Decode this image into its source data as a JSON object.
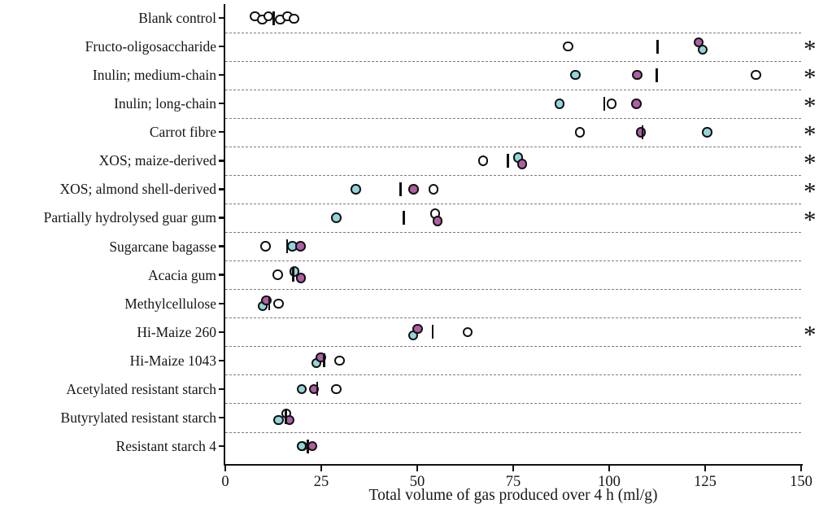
{
  "chart_data": {
    "type": "scatter",
    "title": "",
    "xlabel": "Total volume of gas produced over 4 h (ml/g)",
    "ylabel": "",
    "xlim": [
      0,
      150
    ],
    "x_ticks": [
      0,
      25,
      50,
      75,
      100,
      125,
      150
    ],
    "grid": "dashed horizontal row separators",
    "legend_position": "none",
    "significance_marker": "*",
    "colors": {
      "open": "#ffffff",
      "teal": "#93d5da",
      "pink": "#ae5fa5",
      "outline": "#111111"
    },
    "rows": [
      {
        "label": "Blank control",
        "significant": false,
        "median": 12.6,
        "points": [
          {
            "s": "open",
            "v": 7.7,
            "dy": -2
          },
          {
            "s": "open",
            "v": 9.6,
            "dy": 2
          },
          {
            "s": "open",
            "v": 11.2,
            "dy": -2
          },
          {
            "s": "open",
            "v": 14.3,
            "dy": 2
          },
          {
            "s": "open",
            "v": 16.2,
            "dy": -2
          },
          {
            "s": "open",
            "v": 17.9,
            "dy": 1
          }
        ]
      },
      {
        "label": "Fructo-oligosaccharide",
        "significant": true,
        "median": 112.6,
        "points": [
          {
            "s": "open",
            "v": 89.3,
            "dy": 0
          },
          {
            "s": "pink",
            "v": 123.3,
            "dy": -5
          },
          {
            "s": "teal",
            "v": 124.4,
            "dy": 4
          }
        ]
      },
      {
        "label": "Inulin; medium-chain",
        "significant": true,
        "median": 112.4,
        "points": [
          {
            "s": "teal",
            "v": 91.2,
            "dy": 0
          },
          {
            "s": "pink",
            "v": 107.3,
            "dy": 0
          },
          {
            "s": "open",
            "v": 138.2,
            "dy": 0
          }
        ]
      },
      {
        "label": "Inulin; long-chain",
        "significant": true,
        "median": 98.7,
        "points": [
          {
            "s": "teal",
            "v": 87.1,
            "dy": 0
          },
          {
            "s": "open",
            "v": 100.6,
            "dy": 0
          },
          {
            "s": "pink",
            "v": 107.1,
            "dy": 0
          }
        ]
      },
      {
        "label": "Carrot fibre",
        "significant": true,
        "median": 108.7,
        "points": [
          {
            "s": "open",
            "v": 92.4,
            "dy": 0
          },
          {
            "s": "pink",
            "v": 108.3,
            "dy": 0
          },
          {
            "s": "teal",
            "v": 125.5,
            "dy": 0
          }
        ]
      },
      {
        "label": "XOS; maize-derived",
        "significant": true,
        "median": 73.6,
        "points": [
          {
            "s": "open",
            "v": 67.2,
            "dy": 0
          },
          {
            "s": "teal",
            "v": 76.3,
            "dy": -4
          },
          {
            "s": "pink",
            "v": 77.3,
            "dy": 4
          }
        ]
      },
      {
        "label": "XOS; almond shell-derived",
        "significant": true,
        "median": 45.6,
        "points": [
          {
            "s": "teal",
            "v": 34.0,
            "dy": 0
          },
          {
            "s": "pink",
            "v": 49.0,
            "dy": 0
          },
          {
            "s": "open",
            "v": 54.2,
            "dy": 0
          }
        ]
      },
      {
        "label": "Partially hydrolysed guar gum",
        "significant": true,
        "median": 46.5,
        "points": [
          {
            "s": "teal",
            "v": 28.9,
            "dy": 0
          },
          {
            "s": "open",
            "v": 54.7,
            "dy": -5
          },
          {
            "s": "pink",
            "v": 55.3,
            "dy": 4
          }
        ]
      },
      {
        "label": "Sugarcane bagasse",
        "significant": false,
        "median": 16.1,
        "points": [
          {
            "s": "open",
            "v": 10.5,
            "dy": 0
          },
          {
            "s": "teal",
            "v": 17.5,
            "dy": 0
          },
          {
            "s": "pink",
            "v": 19.6,
            "dy": 0
          }
        ]
      },
      {
        "label": "Acacia gum",
        "significant": false,
        "median": 17.7,
        "points": [
          {
            "s": "open",
            "v": 13.7,
            "dy": 0
          },
          {
            "s": "teal",
            "v": 18.0,
            "dy": -4
          },
          {
            "s": "pink",
            "v": 19.7,
            "dy": 4
          }
        ]
      },
      {
        "label": "Methylcellulose",
        "significant": false,
        "median": 11.4,
        "points": [
          {
            "s": "teal",
            "v": 9.7,
            "dy": 3
          },
          {
            "s": "pink",
            "v": 10.7,
            "dy": -4
          },
          {
            "s": "open",
            "v": 13.9,
            "dy": 0
          }
        ]
      },
      {
        "label": "Hi-Maize 260",
        "significant": true,
        "median": 54.0,
        "points": [
          {
            "s": "teal",
            "v": 48.9,
            "dy": 4
          },
          {
            "s": "pink",
            "v": 50.1,
            "dy": -4
          },
          {
            "s": "open",
            "v": 63.1,
            "dy": 0
          }
        ]
      },
      {
        "label": "Hi-Maize 1043",
        "significant": false,
        "median": 25.7,
        "points": [
          {
            "s": "teal",
            "v": 23.7,
            "dy": 3
          },
          {
            "s": "pink",
            "v": 24.9,
            "dy": -4
          },
          {
            "s": "open",
            "v": 29.8,
            "dy": 0
          }
        ]
      },
      {
        "label": "Acetylated resistant starch",
        "significant": false,
        "median": 23.9,
        "points": [
          {
            "s": "teal",
            "v": 19.9,
            "dy": 0
          },
          {
            "s": "pink",
            "v": 23.1,
            "dy": 0
          },
          {
            "s": "open",
            "v": 28.9,
            "dy": 0
          }
        ]
      },
      {
        "label": "Butyrylated resistant starch",
        "significant": false,
        "median": 15.8,
        "points": [
          {
            "s": "teal",
            "v": 13.9,
            "dy": 3
          },
          {
            "s": "open",
            "v": 15.9,
            "dy": -5
          },
          {
            "s": "pink",
            "v": 16.7,
            "dy": 3
          }
        ]
      },
      {
        "label": "Resistant starch 4",
        "significant": false,
        "median": 21.5,
        "points": [
          {
            "s": "open",
            "v": 20.0,
            "dy": 0
          },
          {
            "s": "teal",
            "v": 19.9,
            "dy": 0
          },
          {
            "s": "pink",
            "v": 22.7,
            "dy": 0
          }
        ]
      }
    ]
  }
}
